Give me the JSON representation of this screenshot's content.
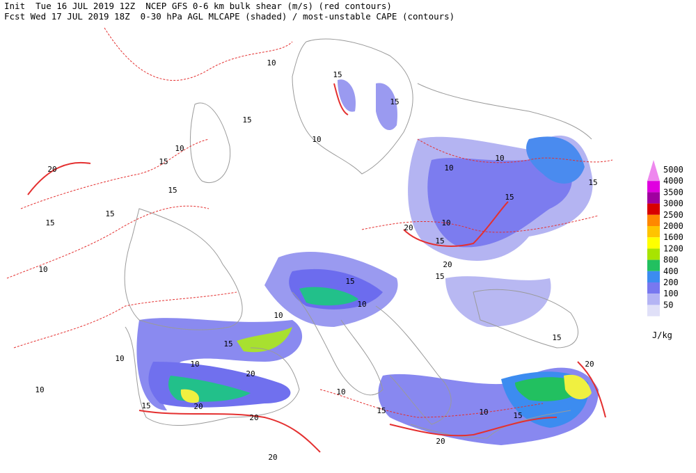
{
  "header": {
    "line1": "Init  Tue 16 JUL 2019 12Z  NCEP GFS 0-6 km bulk shear (m/s) (red contours)",
    "line2": "Fcst Wed 17 JUL 2019 18Z  0-30 hPa AGL MLCAPE (shaded) / most-unstable CAPE (contours)"
  },
  "legend": {
    "unit": "J/kg",
    "levels": [
      {
        "value": 5000,
        "color": "#ee88ee"
      },
      {
        "value": 4000,
        "color": "#e000e0"
      },
      {
        "value": 3500,
        "color": "#a000a0"
      },
      {
        "value": 3000,
        "color": "#d80000"
      },
      {
        "value": 2500,
        "color": "#ff8800"
      },
      {
        "value": 2000,
        "color": "#ffc400"
      },
      {
        "value": 1600,
        "color": "#ffff00"
      },
      {
        "value": 1200,
        "color": "#a8e400"
      },
      {
        "value": 800,
        "color": "#22c060"
      },
      {
        "value": 400,
        "color": "#3c8cf0"
      },
      {
        "value": 200,
        "color": "#7878f0"
      },
      {
        "value": 100,
        "color": "#b4b4f4"
      },
      {
        "value": 50,
        "color": "#e0e0f8"
      }
    ]
  },
  "contour_labels": [
    "10",
    "15",
    "15",
    "10",
    "15",
    "20",
    "15",
    "15",
    "15",
    "10",
    "10",
    "15",
    "10",
    "10",
    "15",
    "15",
    "10",
    "20",
    "15",
    "20",
    "15",
    "15",
    "10",
    "10",
    "15",
    "10",
    "20",
    "20",
    "15",
    "10",
    "15",
    "10",
    "15",
    "20",
    "20",
    "15",
    "10",
    "10",
    "20",
    "20"
  ]
}
